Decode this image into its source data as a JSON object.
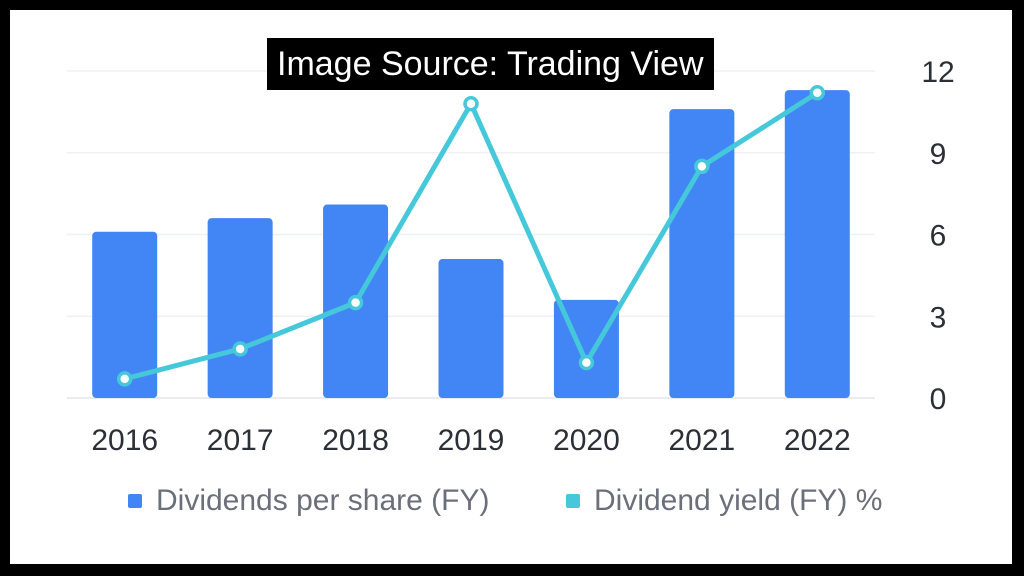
{
  "banner": {
    "text": "Image Source: Trading View"
  },
  "chart_data": {
    "type": "bar",
    "categories": [
      "2016",
      "2017",
      "2018",
      "2019",
      "2020",
      "2021",
      "2022"
    ],
    "series": [
      {
        "name": "Dividends per share (FY)",
        "type": "bar",
        "color": "#4285f4",
        "values": [
          6.1,
          6.6,
          7.1,
          5.1,
          3.6,
          10.6,
          11.3
        ]
      },
      {
        "name": "Dividend yield (FY) %",
        "type": "line",
        "color": "#45c8d9",
        "values": [
          0.7,
          1.8,
          3.5,
          10.8,
          1.3,
          8.5,
          11.2
        ]
      }
    ],
    "ylim": [
      0,
      12
    ],
    "yticks": [
      "0",
      "3",
      "6",
      "9",
      "12"
    ],
    "y_axis_position": "right",
    "grid": true,
    "legend_position": "bottom"
  }
}
